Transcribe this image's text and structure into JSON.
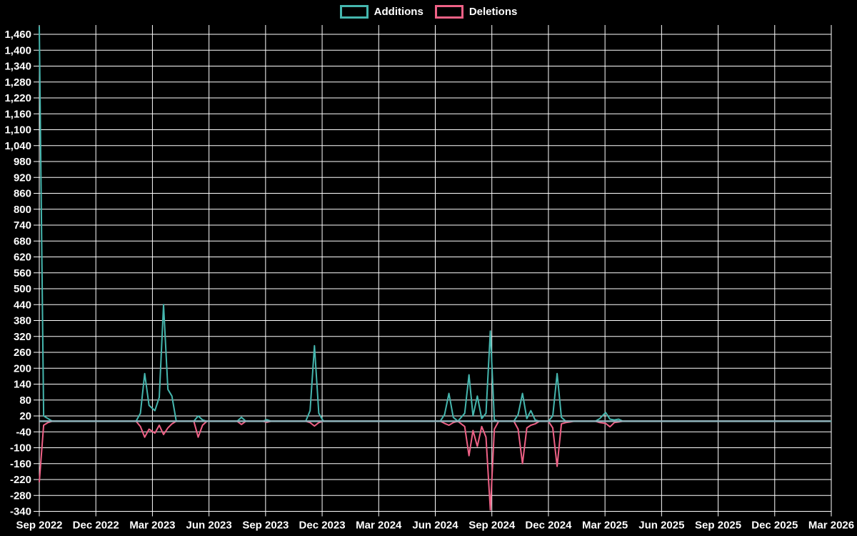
{
  "legend": {
    "items": [
      {
        "label": "Additions",
        "color": "#45b6ae"
      },
      {
        "label": "Deletions",
        "color": "#ef6186"
      }
    ]
  },
  "chart_data": {
    "type": "line",
    "title": "",
    "xlabel": "",
    "ylabel": "",
    "grid": true,
    "legend_position": "top-center",
    "background_color": "#000000",
    "grid_color": "#ffffff",
    "axis_text_color": "#ffffff",
    "baseline_color": "#8fb2ba",
    "ylim": [
      -340,
      1460
    ],
    "y_step": 60,
    "y_tick_labels": [
      "1,460",
      "1,400",
      "1,340",
      "1,280",
      "1,220",
      "1,160",
      "1,100",
      "1,040",
      "980",
      "920",
      "860",
      "800",
      "740",
      "680",
      "620",
      "560",
      "500",
      "440",
      "380",
      "320",
      "260",
      "200",
      "140",
      "80",
      "20",
      "-40",
      "-100",
      "-160",
      "-220",
      "-280",
      "-340"
    ],
    "x_tick_labels": [
      "Sep 2022",
      "Dec 2022",
      "Mar 2023",
      "Jun 2023",
      "Sep 2023",
      "Dec 2023",
      "Mar 2024",
      "Jun 2024",
      "Sep 2024",
      "Dec 2024",
      "Mar 2025",
      "Jun 2025",
      "Sep 2025",
      "Dec 2025",
      "Mar 2026"
    ],
    "x_range": [
      "2022-09-01",
      "2026-03-01"
    ],
    "series": [
      {
        "name": "Additions",
        "color": "#45b6ae",
        "points": [
          [
            "2022-09-01",
            1490
          ],
          [
            "2022-09-08",
            20
          ],
          [
            "2022-09-15",
            10
          ],
          [
            "2022-09-22",
            0
          ],
          [
            "2023-02-05",
            0
          ],
          [
            "2023-02-12",
            30
          ],
          [
            "2023-02-19",
            180
          ],
          [
            "2023-02-26",
            60
          ],
          [
            "2023-03-05",
            40
          ],
          [
            "2023-03-12",
            90
          ],
          [
            "2023-03-19",
            440
          ],
          [
            "2023-03-26",
            120
          ],
          [
            "2023-04-02",
            95
          ],
          [
            "2023-04-09",
            0
          ],
          [
            "2023-05-07",
            0
          ],
          [
            "2023-05-14",
            20
          ],
          [
            "2023-05-21",
            5
          ],
          [
            "2023-05-28",
            0
          ],
          [
            "2023-07-16",
            0
          ],
          [
            "2023-07-23",
            15
          ],
          [
            "2023-07-30",
            0
          ],
          [
            "2023-08-27",
            0
          ],
          [
            "2023-09-03",
            6
          ],
          [
            "2023-09-10",
            0
          ],
          [
            "2023-11-05",
            0
          ],
          [
            "2023-11-12",
            40
          ],
          [
            "2023-11-19",
            285
          ],
          [
            "2023-11-26",
            30
          ],
          [
            "2023-12-03",
            0
          ],
          [
            "2024-06-09",
            0
          ],
          [
            "2024-06-16",
            25
          ],
          [
            "2024-06-23",
            105
          ],
          [
            "2024-06-30",
            15
          ],
          [
            "2024-07-07",
            0
          ],
          [
            "2024-07-18",
            30
          ],
          [
            "2024-07-25",
            175
          ],
          [
            "2024-08-01",
            20
          ],
          [
            "2024-08-08",
            95
          ],
          [
            "2024-08-15",
            10
          ],
          [
            "2024-08-22",
            30
          ],
          [
            "2024-08-29",
            340
          ],
          [
            "2024-09-05",
            5
          ],
          [
            "2024-09-12",
            0
          ],
          [
            "2024-10-06",
            0
          ],
          [
            "2024-10-13",
            25
          ],
          [
            "2024-10-20",
            105
          ],
          [
            "2024-10-27",
            10
          ],
          [
            "2024-11-03",
            40
          ],
          [
            "2024-11-10",
            5
          ],
          [
            "2024-11-17",
            0
          ],
          [
            "2024-12-01",
            0
          ],
          [
            "2024-12-08",
            20
          ],
          [
            "2024-12-15",
            180
          ],
          [
            "2024-12-22",
            15
          ],
          [
            "2024-12-29",
            0
          ],
          [
            "2025-02-16",
            0
          ],
          [
            "2025-02-23",
            10
          ],
          [
            "2025-03-02",
            33
          ],
          [
            "2025-03-09",
            8
          ],
          [
            "2025-03-16",
            5
          ],
          [
            "2025-03-23",
            8
          ],
          [
            "2025-03-30",
            0
          ],
          [
            "2026-03-01",
            0
          ]
        ]
      },
      {
        "name": "Deletions",
        "color": "#ef6186",
        "points": [
          [
            "2022-09-01",
            -230
          ],
          [
            "2022-09-08",
            -15
          ],
          [
            "2022-09-15",
            -5
          ],
          [
            "2022-09-22",
            0
          ],
          [
            "2023-02-05",
            0
          ],
          [
            "2023-02-12",
            -20
          ],
          [
            "2023-02-19",
            -60
          ],
          [
            "2023-02-26",
            -30
          ],
          [
            "2023-03-05",
            -45
          ],
          [
            "2023-03-12",
            -15
          ],
          [
            "2023-03-19",
            -50
          ],
          [
            "2023-03-26",
            -25
          ],
          [
            "2023-04-02",
            -10
          ],
          [
            "2023-04-09",
            0
          ],
          [
            "2023-05-07",
            0
          ],
          [
            "2023-05-14",
            -60
          ],
          [
            "2023-05-21",
            -15
          ],
          [
            "2023-05-28",
            0
          ],
          [
            "2023-07-16",
            0
          ],
          [
            "2023-07-23",
            -12
          ],
          [
            "2023-07-30",
            0
          ],
          [
            "2023-08-27",
            0
          ],
          [
            "2023-09-03",
            -4
          ],
          [
            "2023-09-10",
            0
          ],
          [
            "2023-11-05",
            0
          ],
          [
            "2023-11-12",
            -5
          ],
          [
            "2023-11-19",
            -18
          ],
          [
            "2023-11-26",
            -5
          ],
          [
            "2023-12-03",
            0
          ],
          [
            "2024-06-09",
            0
          ],
          [
            "2024-06-16",
            -8
          ],
          [
            "2024-06-23",
            -15
          ],
          [
            "2024-06-30",
            -5
          ],
          [
            "2024-07-07",
            0
          ],
          [
            "2024-07-18",
            -20
          ],
          [
            "2024-07-25",
            -130
          ],
          [
            "2024-08-01",
            -35
          ],
          [
            "2024-08-08",
            -95
          ],
          [
            "2024-08-15",
            -20
          ],
          [
            "2024-08-22",
            -60
          ],
          [
            "2024-08-29",
            -335
          ],
          [
            "2024-09-05",
            -30
          ],
          [
            "2024-09-12",
            0
          ],
          [
            "2024-10-06",
            0
          ],
          [
            "2024-10-13",
            -30
          ],
          [
            "2024-10-20",
            -160
          ],
          [
            "2024-10-27",
            -25
          ],
          [
            "2024-11-03",
            -15
          ],
          [
            "2024-11-10",
            -10
          ],
          [
            "2024-11-17",
            0
          ],
          [
            "2024-12-01",
            0
          ],
          [
            "2024-12-08",
            -25
          ],
          [
            "2024-12-15",
            -170
          ],
          [
            "2024-12-22",
            -10
          ],
          [
            "2024-12-29",
            -5
          ],
          [
            "2025-01-05",
            -3
          ],
          [
            "2025-01-12",
            0
          ],
          [
            "2025-02-16",
            0
          ],
          [
            "2025-02-23",
            -5
          ],
          [
            "2025-03-02",
            -8
          ],
          [
            "2025-03-09",
            -21
          ],
          [
            "2025-03-16",
            -5
          ],
          [
            "2025-03-23",
            -3
          ],
          [
            "2025-03-30",
            0
          ],
          [
            "2026-03-01",
            0
          ]
        ]
      }
    ]
  }
}
